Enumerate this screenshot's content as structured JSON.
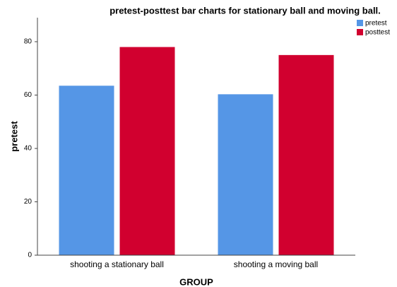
{
  "chart_data": {
    "type": "bar",
    "title": "pretest-posttest bar charts for stationary ball and moving ball.",
    "x_label": "GROUP",
    "y_label": "pretest",
    "categories": [
      "shooting a stationary ball",
      "shooting a moving ball"
    ],
    "series": [
      {
        "name": "pretest",
        "color": "#5596e6",
        "values": [
          63.5,
          60.3
        ]
      },
      {
        "name": "posttest",
        "color": "#d1002f",
        "values": [
          78,
          75
        ]
      }
    ],
    "ylim": [
      0,
      89
    ],
    "yticks": [
      0,
      20,
      40,
      60,
      80
    ],
    "grid": false,
    "legend": "top-right"
  }
}
